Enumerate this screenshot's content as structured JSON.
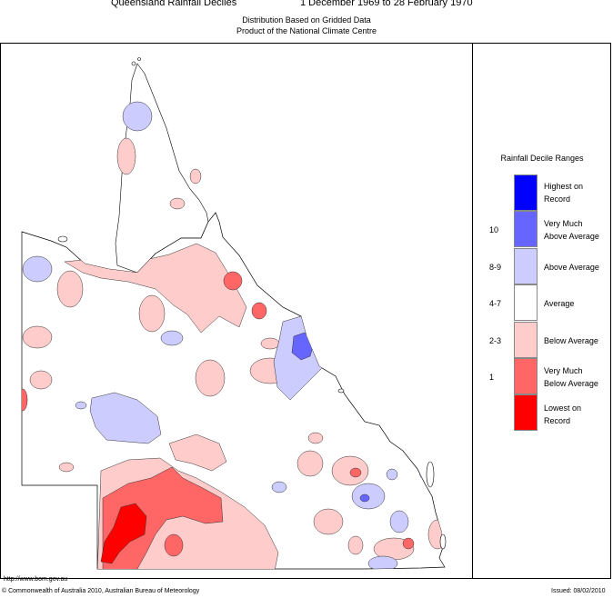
{
  "header": {
    "title": "Queensland Rainfall Deciles",
    "period": "1 December 1969 to 28 February 1970",
    "subtitle1": "Distribution Based on Gridded Data",
    "subtitle2": "Product of the National Climate Centre"
  },
  "legend": {
    "title": "Rainfall Decile Ranges",
    "items": [
      {
        "label": "Highest on Record",
        "line1": "Highest on",
        "line2": "Record",
        "decile": "",
        "color": "#0000ff"
      },
      {
        "label": "Very Much Above Average",
        "line1": "Very Much",
        "line2": "Above Average",
        "decile": "10",
        "color": "#6666ff"
      },
      {
        "label": "Above Average",
        "line1": "Above Average",
        "line2": "",
        "decile": "8-9",
        "color": "#ccccff"
      },
      {
        "label": "Average",
        "line1": "Average",
        "line2": "",
        "decile": "4-7",
        "color": "#ffffff"
      },
      {
        "label": "Below Average",
        "line1": "Below Average",
        "line2": "",
        "decile": "2-3",
        "color": "#ffcccc"
      },
      {
        "label": "Very Much Below Average",
        "line1": "Very Much",
        "line2": "Below Average",
        "decile": "1",
        "color": "#ff6666"
      },
      {
        "label": "Lowest on Record",
        "line1": "Lowest on",
        "line2": "Record",
        "decile": "",
        "color": "#ff0000"
      }
    ]
  },
  "footer": {
    "url": "http://www.bom.gov.au",
    "copyright": "© Commonwealth of Australia 2010, Australian Bureau of Meteorology",
    "issued": "Issued: 08/02/2010"
  }
}
